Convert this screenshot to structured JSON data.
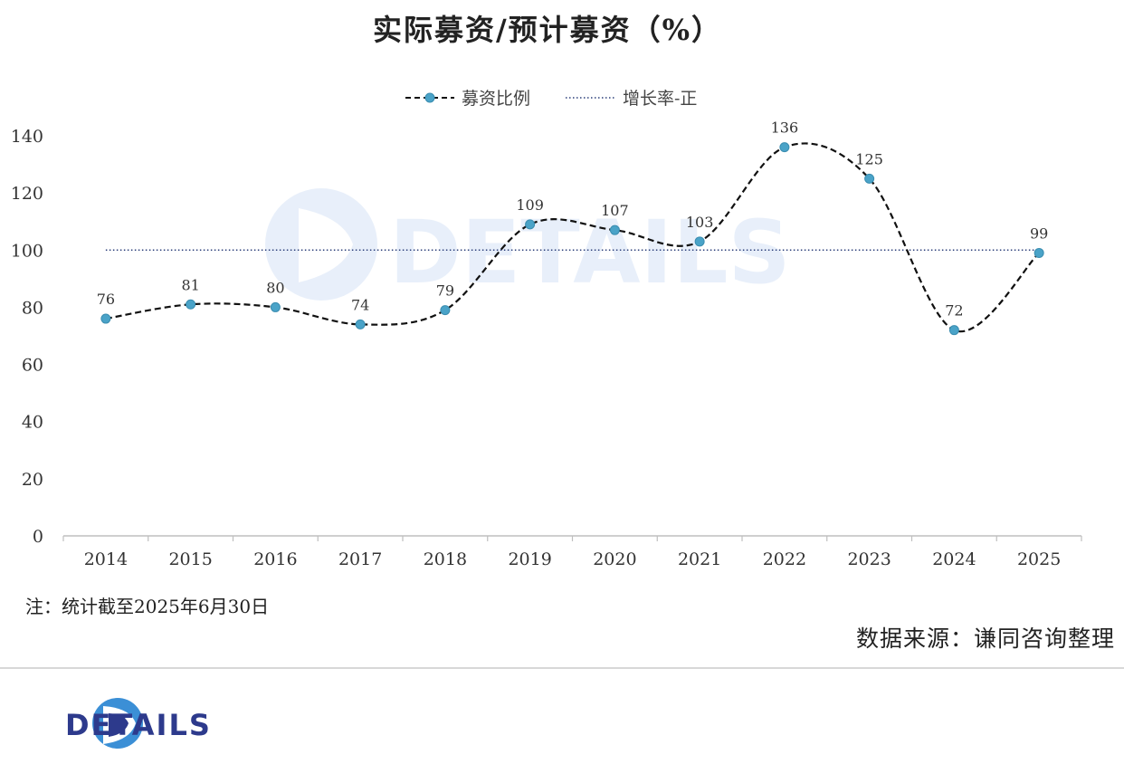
{
  "header": {
    "title": "实际募资/预计募资（%）"
  },
  "watermark": {
    "text": "DETAILS"
  },
  "footer": {
    "note": "注：统计截至2025年6月30日",
    "source": "数据来源：谦同咨询整理",
    "logo_text": "DETAILS"
  },
  "colors": {
    "series": "#4aa3c8",
    "line": "#111111",
    "reference": "#2b3f7a",
    "brand": "#2d3a8c"
  },
  "chart_data": {
    "type": "line",
    "title": "实际募资/预计募资（%）",
    "categories": [
      "2014",
      "2015",
      "2016",
      "2017",
      "2018",
      "2019",
      "2020",
      "2021",
      "2022",
      "2023",
      "2024",
      "2025"
    ],
    "series": [
      {
        "name": "募资比例",
        "values": [
          76,
          81,
          80,
          74,
          79,
          109,
          107,
          103,
          136,
          125,
          72,
          99
        ],
        "style": "dashed smooth with markers"
      },
      {
        "name": "增长率-正",
        "values": [
          100,
          100,
          100,
          100,
          100,
          100,
          100,
          100,
          100,
          100,
          100,
          100
        ],
        "style": "dotted"
      }
    ],
    "yticks": [
      0,
      20,
      40,
      60,
      80,
      100,
      120,
      140
    ],
    "ylim": [
      0,
      140
    ],
    "xlabel": "",
    "ylabel": "",
    "legend": "top-center",
    "grid": false
  }
}
